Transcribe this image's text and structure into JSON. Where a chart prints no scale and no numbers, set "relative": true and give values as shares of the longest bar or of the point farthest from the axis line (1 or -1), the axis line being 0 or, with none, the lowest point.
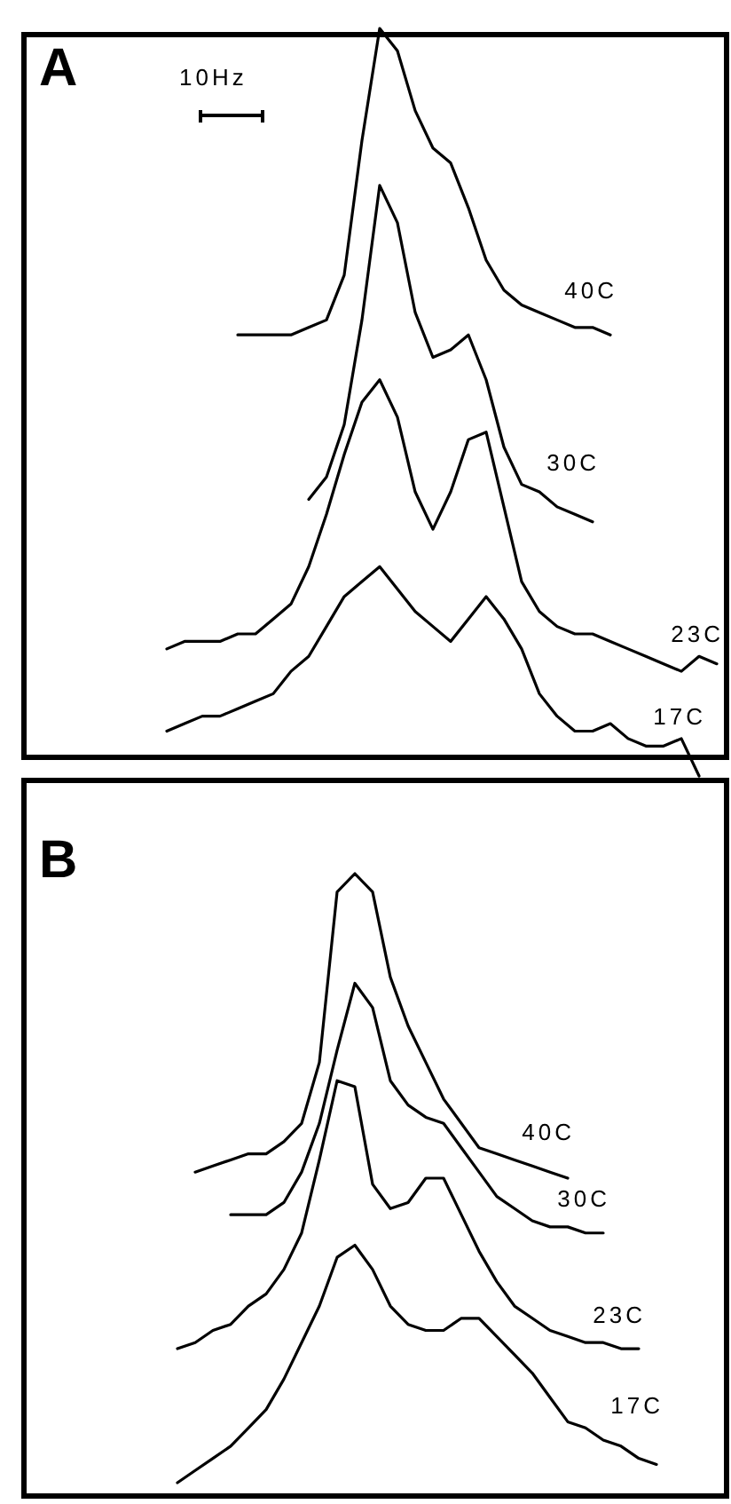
{
  "chart_data": [
    {
      "type": "line",
      "title": "A",
      "relative": true,
      "legend": false,
      "grid": false,
      "marker": "none",
      "line_style": "solid",
      "annotations": [
        "10Hz"
      ],
      "categories": [
        null,
        null,
        null,
        null,
        null,
        null,
        null,
        null,
        null,
        null,
        null,
        null,
        null,
        null,
        null,
        null,
        null,
        null,
        null,
        null,
        null,
        null,
        null,
        null,
        null,
        null,
        null,
        null,
        null,
        null,
        null,
        null
      ],
      "series": [
        {
          "name": "40C",
          "color": "#000000",
          "values": [
            null,
            null,
            null,
            null,
            0.59,
            0.59,
            0.59,
            0.59,
            0.6,
            0.61,
            0.67,
            0.85,
            1.0,
            0.97,
            0.89,
            0.84,
            0.82,
            0.76,
            0.69,
            0.65,
            0.63,
            0.62,
            0.61,
            0.6,
            0.6,
            0.59,
            null,
            null,
            null,
            null,
            null,
            null
          ]
        },
        {
          "name": "30C",
          "color": "#000000",
          "values": [
            null,
            null,
            null,
            null,
            null,
            null,
            null,
            null,
            0.37,
            0.4,
            0.47,
            0.61,
            0.79,
            0.74,
            0.62,
            0.56,
            0.57,
            0.59,
            0.53,
            0.44,
            0.39,
            0.38,
            0.36,
            0.35,
            0.34,
            null,
            null,
            null,
            null,
            null,
            null,
            null
          ]
        },
        {
          "name": "23C",
          "color": "#000000",
          "values": [
            0.17,
            0.18,
            0.18,
            0.18,
            0.19,
            0.19,
            0.21,
            0.23,
            0.28,
            0.35,
            0.43,
            0.5,
            0.53,
            0.48,
            0.38,
            0.33,
            0.38,
            0.45,
            0.46,
            0.36,
            0.26,
            0.22,
            0.2,
            0.19,
            0.19,
            0.18,
            0.17,
            0.16,
            0.15,
            0.14,
            0.16,
            0.15
          ]
        },
        {
          "name": "17C",
          "color": "#000000",
          "values": [
            0.06,
            0.07,
            0.08,
            0.08,
            0.09,
            0.1,
            0.11,
            0.14,
            0.16,
            0.2,
            0.24,
            0.26,
            0.28,
            0.25,
            0.22,
            0.2,
            0.18,
            0.21,
            0.24,
            0.21,
            0.17,
            0.11,
            0.08,
            0.06,
            0.06,
            0.07,
            0.05,
            0.04,
            0.04,
            0.05,
            0.0,
            null
          ]
        }
      ]
    },
    {
      "type": "line",
      "title": "B",
      "relative": true,
      "legend": false,
      "grid": false,
      "marker": "none",
      "line_style": "solid",
      "categories": [
        null,
        null,
        null,
        null,
        null,
        null,
        null,
        null,
        null,
        null,
        null,
        null,
        null,
        null,
        null,
        null,
        null,
        null,
        null,
        null,
        null,
        null,
        null,
        null,
        null,
        null,
        null,
        null
      ],
      "series": [
        {
          "name": "40C",
          "color": "#000000",
          "values": [
            null,
            0.51,
            0.52,
            0.53,
            0.54,
            0.54,
            0.56,
            0.59,
            0.69,
            0.97,
            1.0,
            0.97,
            0.83,
            0.75,
            0.69,
            0.63,
            0.59,
            0.55,
            0.54,
            0.53,
            0.52,
            0.51,
            0.5,
            null,
            null,
            null,
            null,
            null
          ]
        },
        {
          "name": "30C",
          "color": "#000000",
          "values": [
            null,
            null,
            null,
            0.44,
            0.44,
            0.44,
            0.46,
            0.51,
            0.59,
            0.71,
            0.82,
            0.78,
            0.66,
            0.62,
            0.6,
            0.59,
            0.55,
            0.51,
            0.47,
            0.45,
            0.43,
            0.42,
            0.42,
            0.41,
            0.41,
            null,
            null,
            null
          ]
        },
        {
          "name": "23C",
          "color": "#000000",
          "values": [
            0.22,
            0.23,
            0.25,
            0.26,
            0.29,
            0.31,
            0.35,
            0.41,
            0.53,
            0.66,
            0.65,
            0.49,
            0.45,
            0.46,
            0.5,
            0.5,
            0.44,
            0.38,
            0.33,
            0.29,
            0.27,
            0.25,
            0.24,
            0.23,
            0.23,
            0.22,
            0.22,
            null
          ]
        },
        {
          "name": "17C",
          "color": "#000000",
          "values": [
            0.0,
            0.02,
            0.04,
            0.06,
            0.09,
            0.12,
            0.17,
            0.23,
            0.29,
            0.37,
            0.39,
            0.35,
            0.29,
            0.26,
            0.25,
            0.25,
            0.27,
            0.27,
            0.24,
            0.21,
            0.18,
            0.14,
            0.1,
            0.09,
            0.07,
            0.06,
            0.04,
            0.03
          ]
        }
      ]
    }
  ]
}
